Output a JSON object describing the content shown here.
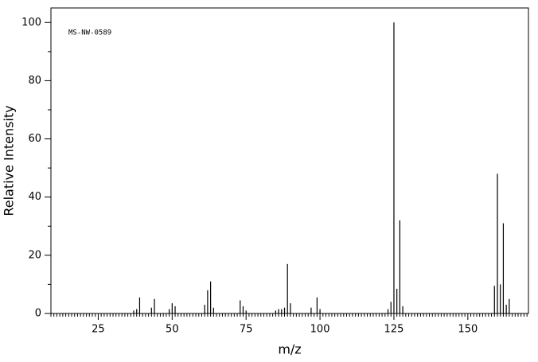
{
  "chart_data": {
    "type": "bar",
    "annotation": "MS-NW-0589",
    "x_label": "m/z",
    "y_label": "Relative Intensity",
    "x": [
      37,
      38,
      39,
      43,
      44,
      49,
      50,
      51,
      61,
      62,
      63,
      64,
      73,
      74,
      75,
      85,
      86,
      87,
      88,
      89,
      90,
      97,
      99,
      100,
      123,
      124,
      125,
      126,
      127,
      128,
      159,
      160,
      161,
      162,
      163,
      164
    ],
    "values": [
      1,
      1.5,
      5.5,
      2,
      5,
      1.5,
      3.5,
      2.5,
      3,
      8,
      11,
      2,
      4.5,
      2.5,
      1,
      1,
      1.5,
      1.5,
      2,
      17,
      3.5,
      2,
      5.5,
      1.5,
      1.5,
      4,
      100,
      8.5,
      32,
      2.5,
      9.5,
      48,
      10,
      31,
      3,
      5
    ],
    "color": "#000000",
    "xlim": [
      9,
      170.5
    ],
    "ylim": [
      0,
      105
    ],
    "xticks": [
      25,
      50,
      75,
      100,
      125,
      150
    ],
    "yticks": [
      0,
      20,
      40,
      60,
      80,
      100
    ]
  }
}
